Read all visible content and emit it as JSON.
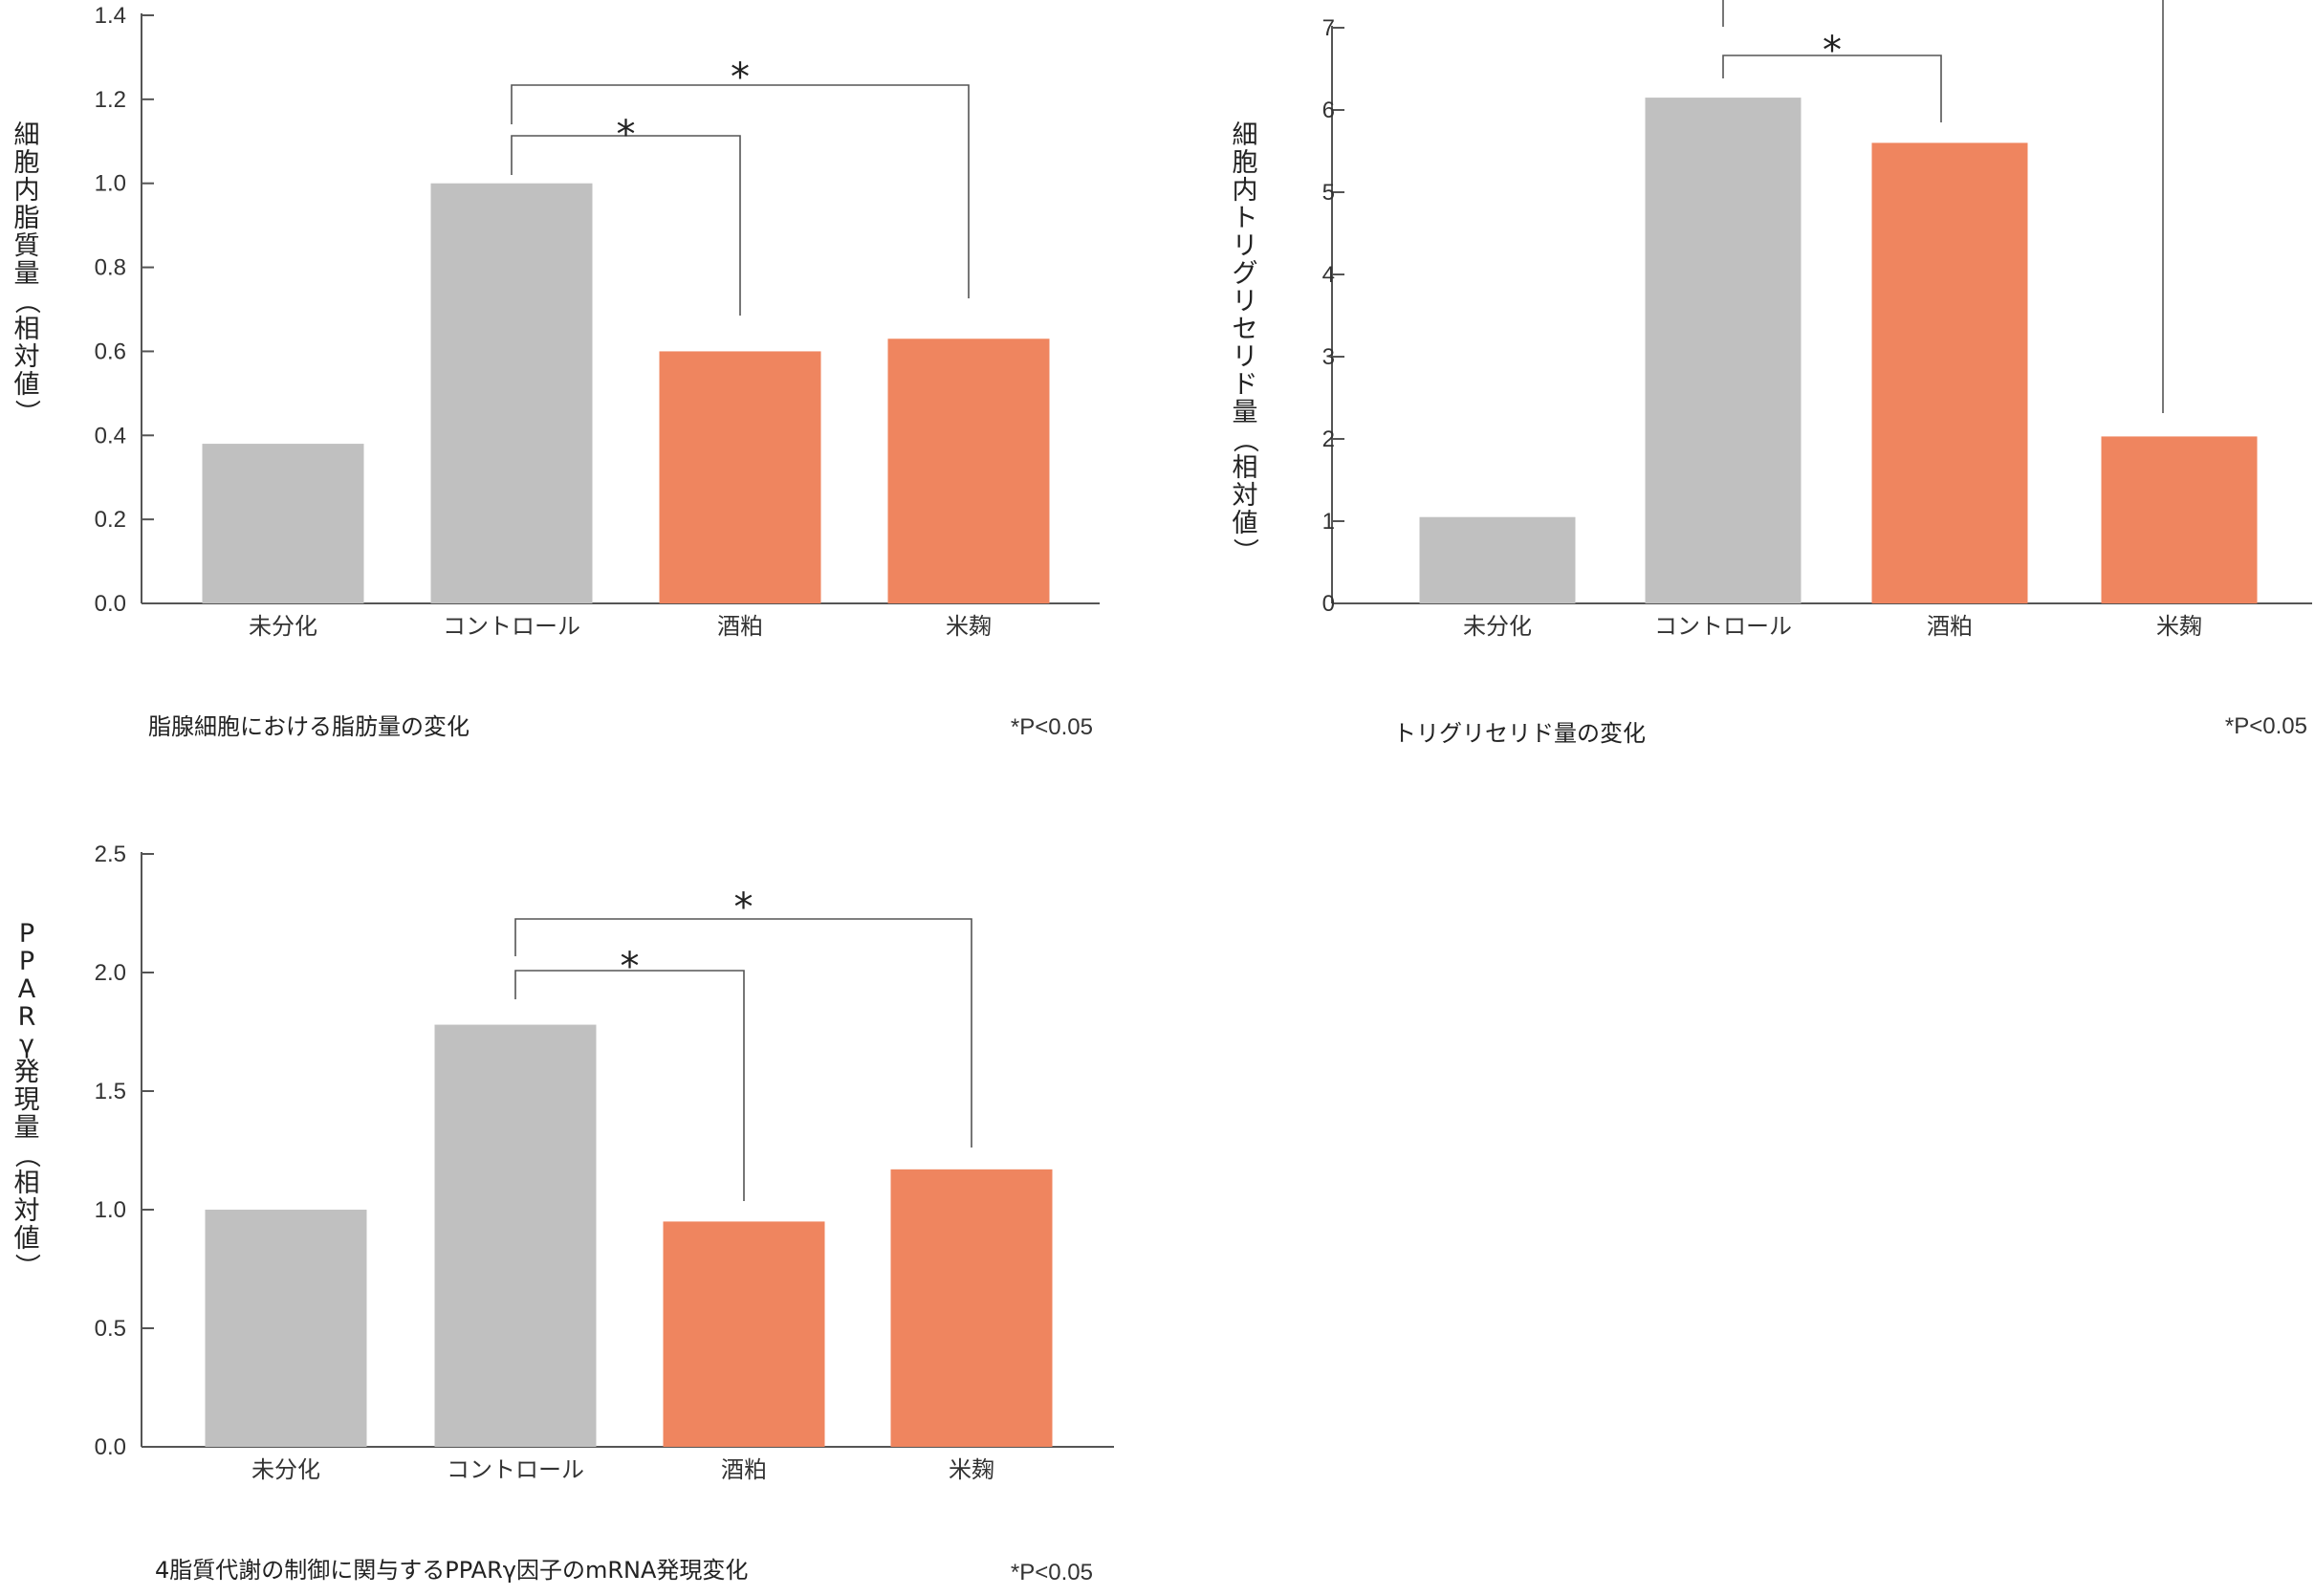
{
  "colors": {
    "gray": "#c0c0c0",
    "orange": "#ef855f",
    "axis": "#555555",
    "bracket": "#555555"
  },
  "chart_data": [
    {
      "type": "bar",
      "ylabel": "細胞内脂質量（相対値）",
      "caption": "脂腺細胞における脂肪量の変化",
      "note": "*P<0.05",
      "ylim": [
        0,
        1.4
      ],
      "yticks": [
        "0.0",
        "0.2",
        "0.4",
        "0.6",
        "0.8",
        "1.0",
        "1.2",
        "1.4"
      ],
      "categories": [
        "未分化",
        "コントロール",
        "酒粕",
        "米麹"
      ],
      "values": [
        0.38,
        1.0,
        0.6,
        0.63
      ],
      "bar_colors": [
        "gray",
        "gray",
        "orange",
        "orange"
      ],
      "significance": [
        {
          "from": 1,
          "to": 2,
          "label": "*"
        },
        {
          "from": 1,
          "to": 3,
          "label": "*"
        }
      ]
    },
    {
      "type": "bar",
      "ylabel": "細胞内トリグリセリド量（相対値）",
      "caption": "トリグリセリド量の変化",
      "note": "*P<0.05",
      "ylim": [
        0,
        7
      ],
      "yticks": [
        "0",
        "1",
        "2",
        "3",
        "4",
        "5",
        "6",
        "7"
      ],
      "categories": [
        "未分化",
        "コントロール",
        "酒粕",
        "米麹"
      ],
      "values": [
        1.05,
        6.15,
        5.6,
        2.03
      ],
      "bar_colors": [
        "gray",
        "gray",
        "orange",
        "orange"
      ],
      "significance": [
        {
          "from": 1,
          "to": 2,
          "label": "*"
        }
      ]
    },
    {
      "type": "bar",
      "ylabel": "PPARγ発現量（相対値）",
      "caption": "4脂質代謝の制御に関与するPPARγ因子のmRNA発現変化",
      "note": "*P<0.05",
      "ylim": [
        0,
        2.5
      ],
      "yticks": [
        "0.0",
        "0.5",
        "1.0",
        "1.5",
        "2.0",
        "2.5"
      ],
      "categories": [
        "未分化",
        "コントロール",
        "酒粕",
        "米麹"
      ],
      "values": [
        1.0,
        1.78,
        0.95,
        1.17
      ],
      "bar_colors": [
        "gray",
        "gray",
        "orange",
        "orange"
      ],
      "significance": [
        {
          "from": 1,
          "to": 2,
          "label": "*"
        },
        {
          "from": 1,
          "to": 3,
          "label": "*"
        }
      ]
    }
  ]
}
